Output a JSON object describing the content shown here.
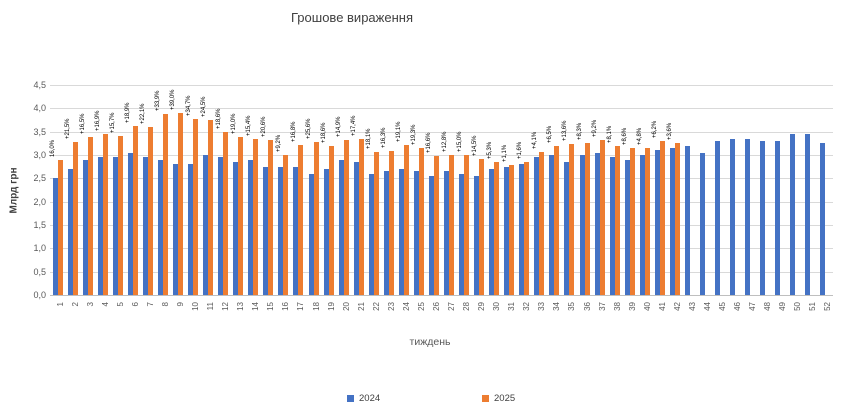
{
  "chart_data": {
    "type": "bar",
    "title": "Грошове вираження",
    "xlabel": "тиждень",
    "ylabel": "Млрд грн",
    "ylim": [
      0,
      4.5
    ],
    "grid": true,
    "legend_position": "bottom",
    "accent_blue": "#4472C4",
    "accent_orange": "#ED7D31",
    "ytick_labels": [
      "0,0",
      "0,5",
      "1,0",
      "1,5",
      "2,0",
      "2,5",
      "3,0",
      "3,5",
      "4,0",
      "4,5"
    ],
    "categories": [
      1,
      2,
      3,
      4,
      5,
      6,
      7,
      8,
      9,
      10,
      11,
      12,
      13,
      14,
      15,
      16,
      17,
      18,
      19,
      20,
      21,
      22,
      23,
      24,
      25,
      26,
      27,
      28,
      29,
      30,
      31,
      32,
      33,
      34,
      35,
      36,
      37,
      38,
      39,
      40,
      41,
      42,
      43,
      44,
      45,
      46,
      47,
      48,
      49,
      50,
      51,
      52
    ],
    "series": [
      {
        "name": "2024",
        "color": "#4472C4",
        "values": [
          2.5,
          2.7,
          2.9,
          2.95,
          2.95,
          3.05,
          2.95,
          2.9,
          2.8,
          2.8,
          3.0,
          2.95,
          2.85,
          2.9,
          2.75,
          2.75,
          2.75,
          2.6,
          2.7,
          2.9,
          2.85,
          2.6,
          2.65,
          2.7,
          2.65,
          2.55,
          2.65,
          2.6,
          2.55,
          2.7,
          2.75,
          2.8,
          2.95,
          3.0,
          2.85,
          3.0,
          3.05,
          2.95,
          2.9,
          3.0,
          3.1,
          3.15,
          3.2,
          3.05,
          3.3,
          3.35,
          3.35,
          3.3,
          3.3,
          3.45,
          3.45,
          3.25
        ]
      },
      {
        "name": "2025",
        "color": "#ED7D31",
        "values": [
          2.9,
          3.28,
          3.38,
          3.45,
          3.41,
          3.63,
          3.6,
          3.88,
          3.89,
          3.77,
          3.74,
          3.5,
          3.39,
          3.35,
          3.32,
          3.0,
          3.21,
          3.27,
          3.2,
          3.33,
          3.35,
          3.07,
          3.08,
          3.22,
          3.16,
          2.97,
          2.99,
          2.99,
          2.92,
          2.84,
          2.78,
          2.84,
          3.07,
          3.2,
          3.24,
          3.25,
          3.33,
          3.19,
          3.15,
          3.14,
          3.29,
          3.26
        ]
      }
    ],
    "bar_labels": {
      "series": "2025",
      "values": [
        "16,0%",
        "+21,5%",
        "+16,5%",
        "+16,9%",
        "+15,7%",
        "+18,9%",
        "+22,1%",
        "+33,9%",
        "+39,0%",
        "+34,7%",
        "+24,5%",
        "+18,6%",
        "+19,0%",
        "+15,4%",
        "+20,6%",
        "+9,2%",
        "+16,8%",
        "+25,6%",
        "+18,6%",
        "+14,9%",
        "+17,4%",
        "+18,1%",
        "+16,3%",
        "+19,1%",
        "+19,3%",
        "+16,6%",
        "+12,8%",
        "+15,0%",
        "+14,5%",
        "+5,3%",
        "+1,1%",
        "+1,6%",
        "+4,1%",
        "+6,5%",
        "+13,6%",
        "+8,3%",
        "+9,2%",
        "+8,1%",
        "+8,6%",
        "+4,8%",
        "+6,2%",
        "+3,6%"
      ]
    }
  }
}
